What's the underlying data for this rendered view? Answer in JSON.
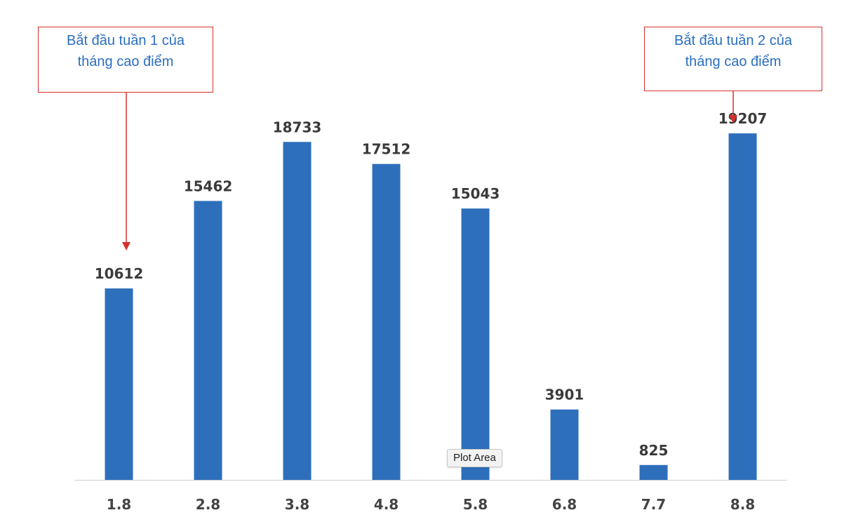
{
  "chart_data": {
    "type": "bar",
    "categories": [
      "1.8",
      "2.8",
      "3.8",
      "4.8",
      "5.8",
      "6.8",
      "7.7",
      "8.8"
    ],
    "values": [
      10612,
      15462,
      18733,
      17512,
      15043,
      3901,
      825,
      19207
    ],
    "ylim": [
      0,
      21000
    ],
    "grid": false,
    "bar_color": "#2e6fbb",
    "data_labels": true,
    "annotations": [
      {
        "text": "Bắt đầu tuần 1 của\ntháng cao điểm",
        "target_category": "1.8"
      },
      {
        "text": "Bắt đầu tuần 2  của\ntháng cao điểm",
        "target_category": "8.8"
      }
    ]
  },
  "tooltip": {
    "text": "Plot Area"
  },
  "colors": {
    "accent": "#2e6fbb",
    "annotation_border": "#d6302a",
    "annotation_text": "#2b6fc0"
  }
}
